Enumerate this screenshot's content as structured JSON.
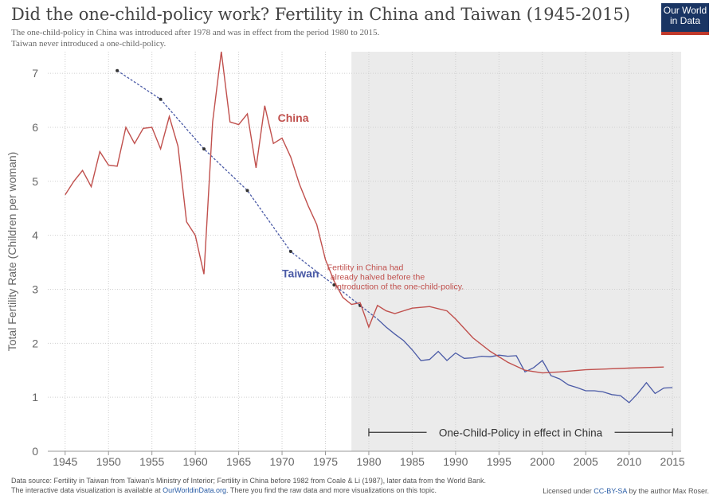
{
  "header": {
    "title": "Did the one-child-policy work? Fertility in China and Taiwan (1945-2015)",
    "subtitle_1": "The one-child-policy in China was introduced after 1978 and was in effect from the period 1980 to 2015.",
    "subtitle_2": "Taiwan never introduced a one-child-policy."
  },
  "logo": {
    "line1": "Our World",
    "line2": "in Data"
  },
  "footer": {
    "source": "Data source: Fertility in Taiwan from Taiwan's Ministry of Interior; Fertility in China before 1982 from Coale & Li (1987), later data from the World Bank.",
    "viz_prefix": "The interactive data visualization is available at ",
    "viz_link": "OurWorldinData.org",
    "viz_suffix": ". There you find the raw data and more visualizations on this topic.",
    "license_prefix": "Licensed under ",
    "license_link": "CC-BY-SA",
    "license_suffix": " by the author Max Roser."
  },
  "colors": {
    "china": "#c0504d",
    "taiwan": "#4a5aa6",
    "shade": "#ebebeb"
  },
  "chart_data": {
    "type": "line",
    "ylabel": "Total Fertility Rate (Children per woman)",
    "xlim": [
      1943,
      2016
    ],
    "ylim": [
      0,
      7.4
    ],
    "x_ticks": [
      1945,
      1950,
      1955,
      1960,
      1965,
      1970,
      1975,
      1980,
      1985,
      1990,
      1995,
      2000,
      2005,
      2010,
      2015
    ],
    "y_ticks": [
      0,
      1,
      2,
      3,
      4,
      5,
      6,
      7
    ],
    "grid": true,
    "shaded_region": {
      "x_start": 1978,
      "x_end": 2016
    },
    "series": [
      {
        "name": "China",
        "points": [
          [
            1945,
            4.75
          ],
          [
            1946,
            5.0
          ],
          [
            1947,
            5.2
          ],
          [
            1948,
            4.9
          ],
          [
            1949,
            5.55
          ],
          [
            1950,
            5.3
          ],
          [
            1951,
            5.28
          ],
          [
            1952,
            6.0
          ],
          [
            1953,
            5.7
          ],
          [
            1954,
            5.98
          ],
          [
            1955,
            6.0
          ],
          [
            1956,
            5.6
          ],
          [
            1957,
            6.2
          ],
          [
            1958,
            5.65
          ],
          [
            1959,
            4.25
          ],
          [
            1960,
            4.0
          ],
          [
            1961,
            3.28
          ],
          [
            1962,
            6.1
          ],
          [
            1963,
            7.4
          ],
          [
            1964,
            6.1
          ],
          [
            1965,
            6.05
          ],
          [
            1966,
            6.25
          ],
          [
            1967,
            5.25
          ],
          [
            1968,
            6.4
          ],
          [
            1969,
            5.7
          ],
          [
            1970,
            5.8
          ],
          [
            1971,
            5.45
          ],
          [
            1972,
            4.95
          ],
          [
            1973,
            4.55
          ],
          [
            1974,
            4.2
          ],
          [
            1975,
            3.55
          ],
          [
            1976,
            3.15
          ],
          [
            1977,
            2.85
          ],
          [
            1978,
            2.72
          ],
          [
            1979,
            2.75
          ],
          [
            1980,
            2.3
          ],
          [
            1981,
            2.7
          ],
          [
            1982,
            2.6
          ],
          [
            1983,
            2.55
          ],
          [
            1985,
            2.65
          ],
          [
            1987,
            2.68
          ],
          [
            1989,
            2.6
          ],
          [
            1990,
            2.45
          ],
          [
            1992,
            2.1
          ],
          [
            1994,
            1.85
          ],
          [
            1996,
            1.65
          ],
          [
            1998,
            1.5
          ],
          [
            2000,
            1.45
          ],
          [
            2002,
            1.47
          ],
          [
            2005,
            1.51
          ],
          [
            2010,
            1.54
          ],
          [
            2014,
            1.56
          ]
        ]
      },
      {
        "name": "Taiwan",
        "points_dashed": [
          [
            1951,
            7.05
          ],
          [
            1956,
            6.52
          ],
          [
            1961,
            5.6
          ],
          [
            1966,
            4.83
          ],
          [
            1971,
            3.7
          ],
          [
            1976,
            3.08
          ],
          [
            1979,
            2.7
          ],
          [
            1981,
            2.45
          ]
        ],
        "points": [
          [
            1981,
            2.45
          ],
          [
            1982,
            2.3
          ],
          [
            1983,
            2.17
          ],
          [
            1984,
            2.05
          ],
          [
            1985,
            1.88
          ],
          [
            1986,
            1.68
          ],
          [
            1987,
            1.7
          ],
          [
            1988,
            1.85
          ],
          [
            1989,
            1.68
          ],
          [
            1990,
            1.82
          ],
          [
            1991,
            1.72
          ],
          [
            1992,
            1.73
          ],
          [
            1993,
            1.76
          ],
          [
            1994,
            1.75
          ],
          [
            1995,
            1.78
          ],
          [
            1996,
            1.76
          ],
          [
            1997,
            1.77
          ],
          [
            1998,
            1.47
          ],
          [
            1999,
            1.55
          ],
          [
            2000,
            1.68
          ],
          [
            2001,
            1.4
          ],
          [
            2002,
            1.34
          ],
          [
            2003,
            1.23
          ],
          [
            2004,
            1.18
          ],
          [
            2005,
            1.12
          ],
          [
            2006,
            1.12
          ],
          [
            2007,
            1.1
          ],
          [
            2008,
            1.05
          ],
          [
            2009,
            1.03
          ],
          [
            2010,
            0.9
          ],
          [
            2011,
            1.07
          ],
          [
            2012,
            1.27
          ],
          [
            2013,
            1.07
          ],
          [
            2014,
            1.17
          ],
          [
            2015,
            1.18
          ]
        ]
      }
    ],
    "series_labels": [
      {
        "text": "China",
        "x": 1969.5,
        "y": 6.1
      },
      {
        "text": "Taiwan",
        "x": 1970,
        "y": 3.22
      }
    ],
    "annotations": [
      {
        "lines": [
          "Fertility in China had",
          "already halved before the",
          "introduction of the one-child-policy."
        ],
        "x": 1975.2,
        "y": 3.35
      }
    ],
    "policy_span": {
      "text": "One-Child-Policy in effect in China",
      "x_start": 1980,
      "x_end": 2015,
      "y": 0.35
    }
  }
}
